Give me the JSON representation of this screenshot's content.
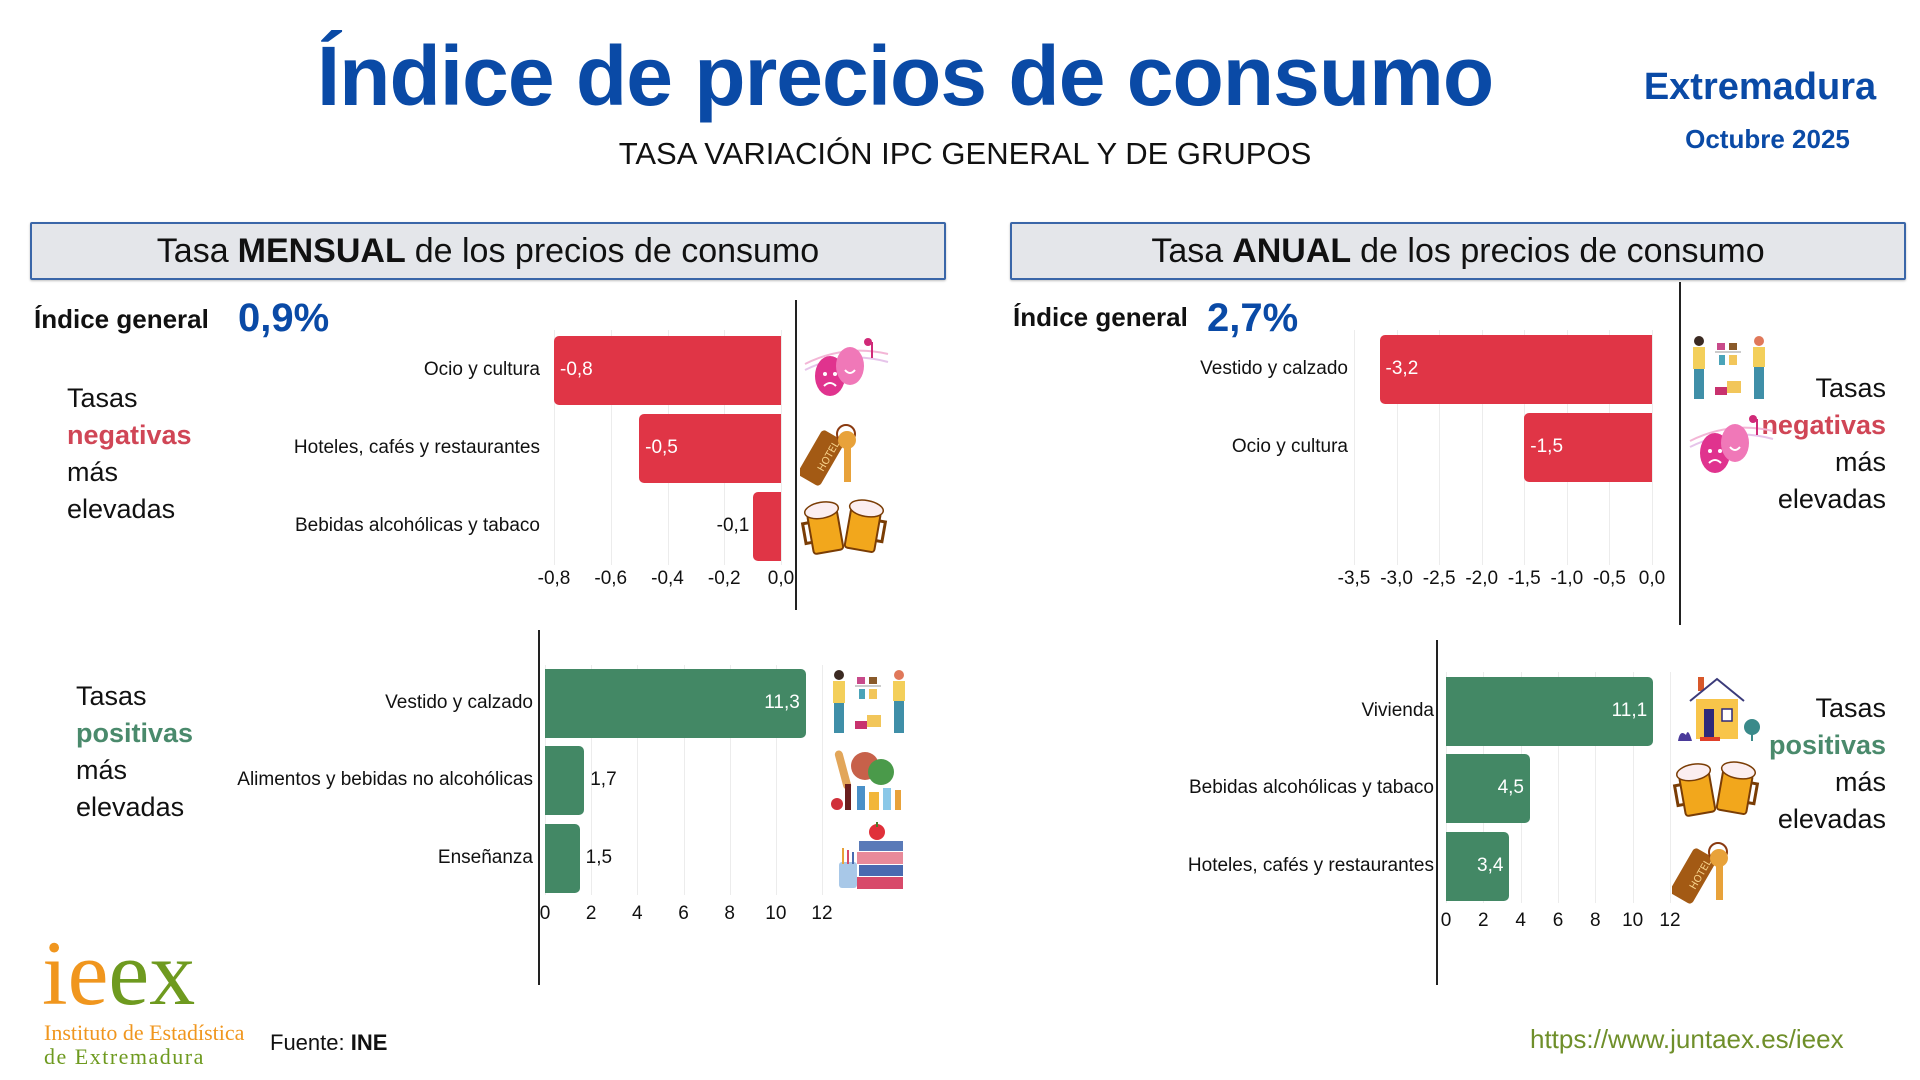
{
  "header": {
    "title": "Índice de precios de consumo",
    "subtitle": "TASA VARIACIÓN IPC GENERAL Y DE GRUPOS",
    "region": "Extremadura",
    "period": "Octubre 2025"
  },
  "monthly": {
    "head_pre": "Tasa",
    "head_bold": "MENSUAL",
    "head_post": "de los precios de consumo",
    "index_label": "Índice general",
    "index_value": "0,9%"
  },
  "annual": {
    "head_pre": "Tasa",
    "head_bold": "ANUAL",
    "head_post": "de los precios de consumo",
    "index_label": "Índice general",
    "index_value": "2,7%"
  },
  "notes": {
    "tasas": "Tasas",
    "negativas": "negativas",
    "positivas": "positivas",
    "mas": "más",
    "elevadas": "elevadas"
  },
  "colors": {
    "negative": "#e03546",
    "positive": "#438865",
    "title_blue": "#0a4aa6"
  },
  "chart_data": [
    {
      "id": "monthly_negative",
      "type": "bar",
      "orientation": "horizontal",
      "title": "Tasas negativas más elevadas (mensual)",
      "categories": [
        "Ocio y cultura",
        "Hoteles, cafés y restaurantes",
        "Bebidas alcohólicas y tabaco"
      ],
      "values": [
        -0.8,
        -0.5,
        -0.1
      ],
      "value_labels": [
        "-0,8",
        "-0,5",
        "-0,1"
      ],
      "icons": [
        "theater-masks-icon",
        "hotel-key-icon",
        "beer-mugs-icon"
      ],
      "xlim": [
        -0.8,
        0.0
      ],
      "ticks": [
        -0.8,
        -0.6,
        -0.4,
        -0.2,
        0.0
      ],
      "tick_labels": [
        "-0,8",
        "-0,6",
        "-0,4",
        "-0,2",
        "0,0"
      ],
      "grid": true
    },
    {
      "id": "monthly_positive",
      "type": "bar",
      "orientation": "horizontal",
      "title": "Tasas positivas más elevadas (mensual)",
      "categories": [
        "Vestido y calzado",
        "Alimentos y bebidas no alcohólicas",
        "Enseñanza"
      ],
      "values": [
        11.3,
        1.7,
        1.5
      ],
      "value_labels": [
        "11,3",
        "1,7",
        "1,5"
      ],
      "icons": [
        "clothing-shop-icon",
        "groceries-icon",
        "books-apple-icon"
      ],
      "xlim": [
        0,
        12
      ],
      "ticks": [
        0,
        2,
        4,
        6,
        8,
        10,
        12
      ],
      "tick_labels": [
        "0",
        "2",
        "4",
        "6",
        "8",
        "10",
        "12"
      ],
      "grid": true
    },
    {
      "id": "annual_negative",
      "type": "bar",
      "orientation": "horizontal",
      "title": "Tasas negativas más elevadas (anual)",
      "categories": [
        "Vestido y calzado",
        "Ocio y cultura"
      ],
      "values": [
        -3.2,
        -1.5
      ],
      "value_labels": [
        "-3,2",
        "-1,5"
      ],
      "icons": [
        "clothing-shop-icon",
        "theater-masks-icon"
      ],
      "xlim": [
        -3.5,
        0.0
      ],
      "ticks": [
        -3.5,
        -3.0,
        -2.5,
        -2.0,
        -1.5,
        -1.0,
        -0.5,
        0.0
      ],
      "tick_labels": [
        "-3,5",
        "-3,0",
        "-2,5",
        "-2,0",
        "-1,5",
        "-1,0",
        "-0,5",
        "0,0"
      ],
      "grid": true
    },
    {
      "id": "annual_positive",
      "type": "bar",
      "orientation": "horizontal",
      "title": "Tasas positivas más elevadas (anual)",
      "categories": [
        "Vivienda",
        "Bebidas alcohólicas y tabaco",
        "Hoteles, cafés y restaurantes"
      ],
      "values": [
        11.1,
        4.5,
        3.4
      ],
      "value_labels": [
        "11,1",
        "4,5",
        "3,4"
      ],
      "icons": [
        "house-icon",
        "beer-mugs-icon",
        "hotel-key-icon"
      ],
      "xlim": [
        0,
        12
      ],
      "ticks": [
        0,
        2,
        4,
        6,
        8,
        10,
        12
      ],
      "tick_labels": [
        "0",
        "2",
        "4",
        "6",
        "8",
        "10",
        "12"
      ],
      "grid": true
    }
  ],
  "footer": {
    "source_label": "Fuente:",
    "source_value": "INE",
    "url": "https://www.juntaex.es/ieex",
    "logo_i": "i",
    "logo_e": "e",
    "logo_ex": "ex",
    "logo_line1": "Instituto de Estadística",
    "logo_line2": "de Extremadura"
  }
}
